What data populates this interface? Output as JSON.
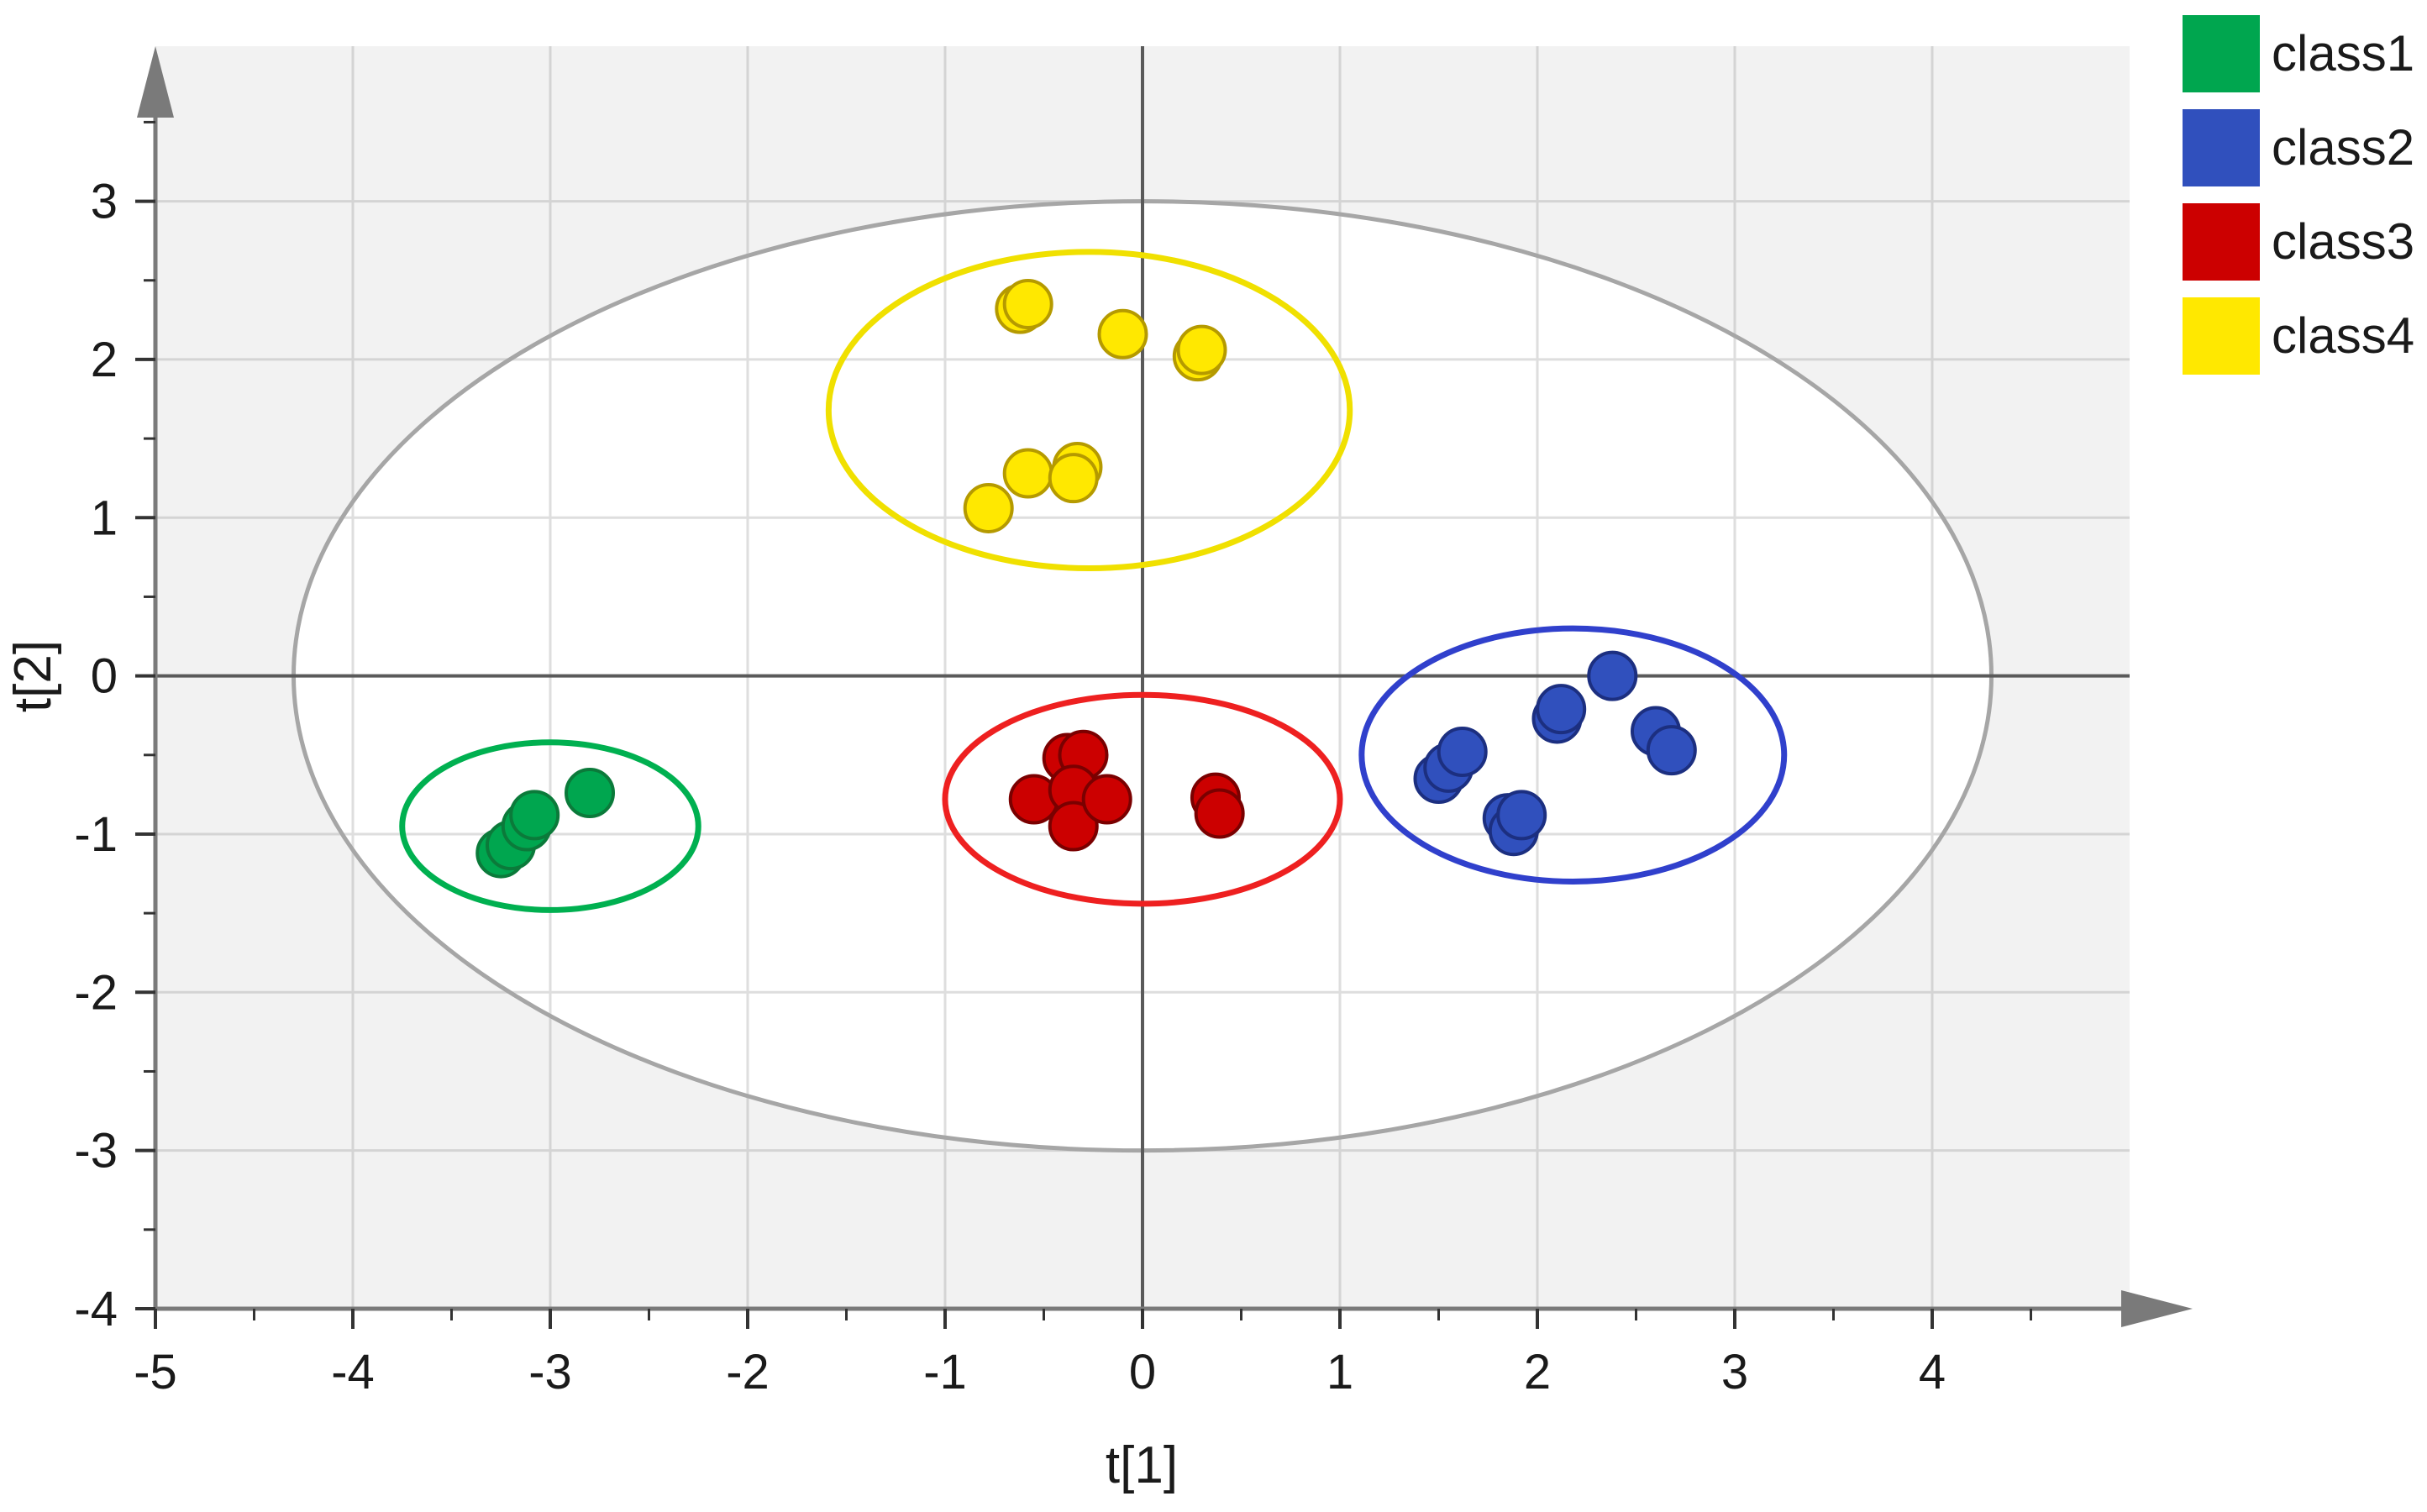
{
  "chart_data": {
    "type": "scatter",
    "xlabel": "t[1]",
    "ylabel": "t[2]",
    "xlim": [
      -5,
      5
    ],
    "ylim": [
      -4,
      4
    ],
    "x_ticks": [
      -5,
      -4,
      -3,
      -2,
      -1,
      0,
      1,
      2,
      3,
      4
    ],
    "y_ticks": [
      -4,
      -3,
      -2,
      -1,
      0,
      1,
      2,
      3
    ],
    "x_tick_labels": [
      "-5",
      "-4",
      "-3",
      "-2",
      "-1",
      "0",
      "1",
      "2",
      "3",
      "4"
    ],
    "y_tick_labels": [
      "-4",
      "-3",
      "-2",
      "-1",
      "0",
      "1",
      "2",
      "3"
    ],
    "grid": true,
    "legend_position": "top-right",
    "hotelling_ellipse": {
      "cx": 0,
      "cy": 0,
      "rx": 4.3,
      "ry": 3.0,
      "color": "#a6a6a6"
    },
    "series": [
      {
        "name": "class1",
        "color": "#00a64f",
        "stroke": "#0b7a3a",
        "points": [
          [
            -3.25,
            -1.12
          ],
          [
            -3.2,
            -1.07
          ],
          [
            -3.12,
            -0.95
          ],
          [
            -3.08,
            -0.88
          ],
          [
            -2.8,
            -0.74
          ]
        ],
        "ellipse": {
          "cx": -3.0,
          "cy": -0.95,
          "rx": 0.75,
          "ry": 0.53,
          "color": "#00b050"
        }
      },
      {
        "name": "class2",
        "color": "#3050bd",
        "stroke": "#1c2f80",
        "points": [
          [
            1.5,
            -0.65
          ],
          [
            1.55,
            -0.58
          ],
          [
            1.62,
            -0.48
          ],
          [
            1.85,
            -0.9
          ],
          [
            1.88,
            -0.98
          ],
          [
            1.92,
            -0.88
          ],
          [
            2.1,
            -0.27
          ],
          [
            2.12,
            -0.21
          ],
          [
            2.38,
            0.0
          ],
          [
            2.6,
            -0.35
          ],
          [
            2.68,
            -0.47
          ]
        ],
        "ellipse": {
          "cx": 2.18,
          "cy": -0.5,
          "rx": 1.07,
          "ry": 0.8,
          "color": "#3040cc"
        }
      },
      {
        "name": "class3",
        "color": "#cc0000",
        "stroke": "#7a0000",
        "points": [
          [
            -0.55,
            -0.78
          ],
          [
            -0.38,
            -0.52
          ],
          [
            -0.3,
            -0.5
          ],
          [
            -0.35,
            -0.72
          ],
          [
            -0.35,
            -0.95
          ],
          [
            -0.18,
            -0.78
          ],
          [
            0.37,
            -0.77
          ],
          [
            0.39,
            -0.87
          ]
        ],
        "ellipse": {
          "cx": 0.0,
          "cy": -0.78,
          "rx": 1.0,
          "ry": 0.66,
          "color": "#ee2020"
        }
      },
      {
        "name": "class4",
        "color": "#ffe800",
        "stroke": "#b59a00",
        "points": [
          [
            -0.62,
            2.32
          ],
          [
            -0.58,
            2.35
          ],
          [
            -0.1,
            2.16
          ],
          [
            0.28,
            2.02
          ],
          [
            0.3,
            2.06
          ],
          [
            -0.58,
            1.28
          ],
          [
            -0.33,
            1.32
          ],
          [
            -0.35,
            1.25
          ],
          [
            -0.78,
            1.06
          ]
        ],
        "ellipse": {
          "cx": -0.27,
          "cy": 1.68,
          "rx": 1.32,
          "ry": 1.0,
          "color": "#f0e000"
        }
      }
    ]
  }
}
